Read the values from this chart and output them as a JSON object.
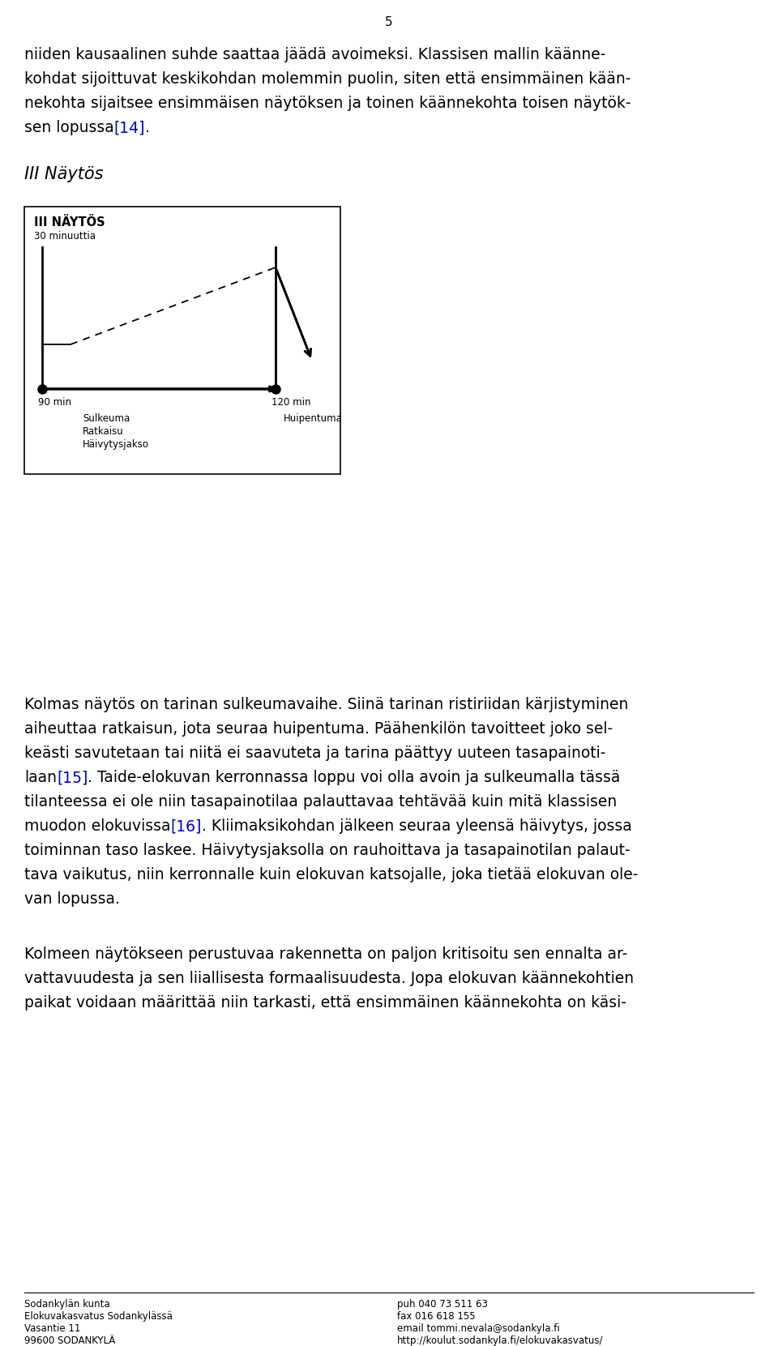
{
  "page_number": "5",
  "background_color": "#ffffff",
  "text_color": "#000000",
  "link_color": "#0000cc",
  "p1_lines": [
    {
      "text": "niiden kausaalinen suhde saattaa jäädä avoimeksi. Klassisen mallin käänne-",
      "links": []
    },
    {
      "text": "kohdat sijoittuvat keskikohdan molemmin puolin, siten että ensimmäinen kään-",
      "links": []
    },
    {
      "text": "nekohta sijaitsee ensimmäisen näytöksen ja toinen käännekohta toisen näytök-",
      "links": []
    },
    {
      "text": "sen lopussa",
      "suffix": "[14]",
      "links": [
        "[14]"
      ]
    }
  ],
  "section_heading": "III Näytös",
  "diagram_title": "III NÄYTÖS",
  "diagram_subtitle": "30 minuuttia",
  "diagram_label_left": "90 min",
  "diagram_label_right": "120 min",
  "diagram_labels_bottom_left": [
    "Sulkeuma",
    "Ratkaisu",
    "Häivytysjakso"
  ],
  "diagram_labels_bottom_right": [
    "Huipentuma"
  ],
  "p2_lines": [
    "Kolmas näytös on tarinan sulkeumavaihe. Siinä tarinan ristiriidan kärjistyminen",
    "aiheuttaa ratkaisun, jota seuraa huipentuma. Päähenkilön tavoitteet joko sel-",
    "keästi savutetaan tai niitä ei saavuteta ja tarina päättyy uuteen tasapainoti-",
    "laan[15]. Taide-elokuvan kerronnassa loppu voi olla avoin ja sulkeumalla tässä",
    "tilanteessa ei ole niin tasapainotilaa palauttavaa tehtävää kuin mitä klassisen",
    "muodon elokuvissa[16]. Kliimaksikohdan jälkeen seuraa yleensä häivytys, jossa",
    "toiminnan taso laskee. Häivytysjaksolla on rauhoittava ja tasapainotilan palaut-",
    "tava vaikutus, niin kerronnalle kuin elokuvan katsojalle, joka tietää elokuvan ole-",
    "van lopussa."
  ],
  "p3_lines": [
    "Kolmeen näytökseen perustuvaa rakennetta on paljon kritisoitu sen ennalta ar-",
    "vattavuudesta ja sen liiallisesta formaalisuudesta. Jopa elokuvan käännekohtien",
    "paikat voidaan määrittää niin tarkasti, että ensimmäinen käännekohta on käsi-"
  ],
  "footer_left": [
    "Sodankylän kunta",
    "Elokuvakasvatus Sodankylässä",
    "Vasantie 11",
    "99600 SODANKYLÄ"
  ],
  "footer_right": [
    "puh 040 73 511 63",
    "fax 016 618 155",
    "email tommi.nevala@sodankyla.fi",
    "http://koulut.sodankyla.fi/elokuvakasvatus/"
  ]
}
